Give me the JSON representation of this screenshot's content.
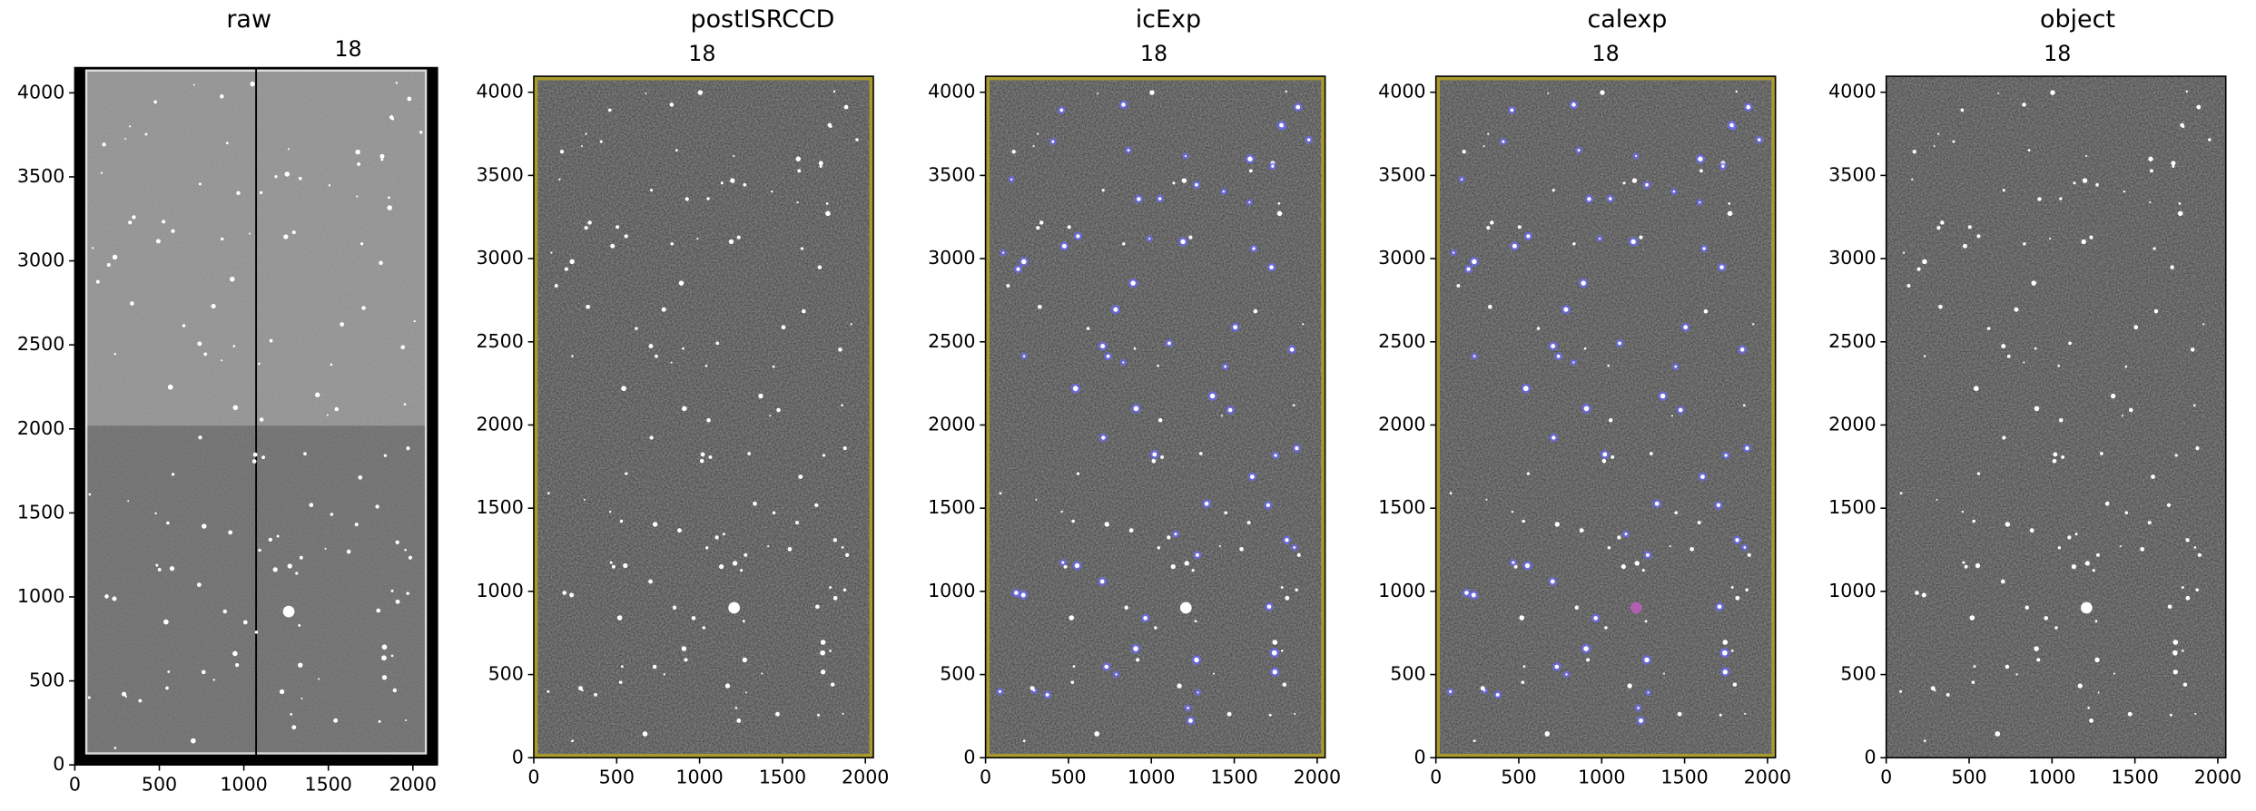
{
  "chart_data": [
    {
      "type": "image",
      "title": "raw",
      "subtitle": "18",
      "xlim": [
        0,
        2145
      ],
      "ylim": [
        0,
        4150
      ],
      "xticks": [
        0,
        500,
        1000,
        1500,
        2000
      ],
      "yticks": [
        0,
        500,
        1000,
        1500,
        2000,
        2500,
        3000,
        3500,
        4000
      ]
    },
    {
      "type": "image",
      "title": "postISRCCD",
      "subtitle": "18",
      "xlim": [
        0,
        2048
      ],
      "ylim": [
        0,
        4096
      ],
      "xticks": [
        0,
        500,
        1000,
        1500,
        2000
      ],
      "yticks": [
        0,
        500,
        1000,
        1500,
        2000,
        2500,
        3000,
        3500,
        4000
      ]
    },
    {
      "type": "image",
      "title": "icExp",
      "subtitle": "18",
      "xlim": [
        0,
        2048
      ],
      "ylim": [
        0,
        4096
      ],
      "xticks": [
        0,
        500,
        1000,
        1500,
        2000
      ],
      "yticks": [
        0,
        500,
        1000,
        1500,
        2000,
        2500,
        3000,
        3500,
        4000
      ]
    },
    {
      "type": "image",
      "title": "calexp",
      "subtitle": "18",
      "xlim": [
        0,
        2048
      ],
      "ylim": [
        0,
        4096
      ],
      "xticks": [
        0,
        500,
        1000,
        1500,
        2000
      ],
      "yticks": [
        0,
        500,
        1000,
        1500,
        2000,
        2500,
        3000,
        3500,
        4000
      ]
    },
    {
      "type": "image",
      "title": "object",
      "subtitle": "18",
      "xlim": [
        0,
        2048
      ],
      "ylim": [
        0,
        4096
      ],
      "xticks": [
        0,
        500,
        1000,
        1500,
        2000
      ],
      "yticks": [
        0,
        500,
        1000,
        1500,
        2000,
        2500,
        3000,
        3500,
        4000
      ]
    }
  ]
}
